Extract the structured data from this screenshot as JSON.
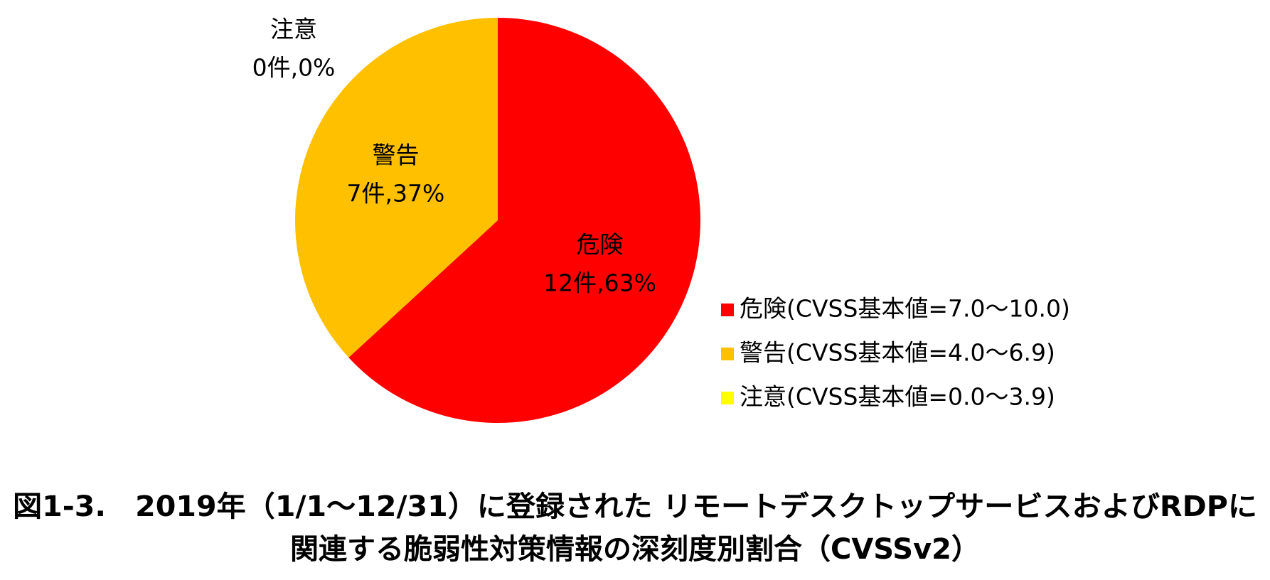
{
  "chart_data": {
    "type": "pie",
    "categories": [
      "危険",
      "警告",
      "注意"
    ],
    "series": [
      {
        "name": "件数",
        "values": [
          12,
          7,
          0
        ],
        "value_labels": [
          "12件,63%",
          "7件,37%",
          "0件,0%"
        ],
        "colors": [
          "#ff0000",
          "#ffc000",
          "#ffff00"
        ]
      }
    ],
    "legend": [
      "危険(CVSS基本値=7.0～10.0)",
      "警告(CVSS基本値=4.0～6.9)",
      "注意(CVSS基本値=0.0～3.9)"
    ],
    "legend_position": "right",
    "caption": [
      "図1-3.　2019年（1/1～12/31）に登録された リモートデスクトップサービスおよびRDPに",
      "関連する脆弱性対策情報の深刻度別割合（CVSSv2）"
    ]
  }
}
